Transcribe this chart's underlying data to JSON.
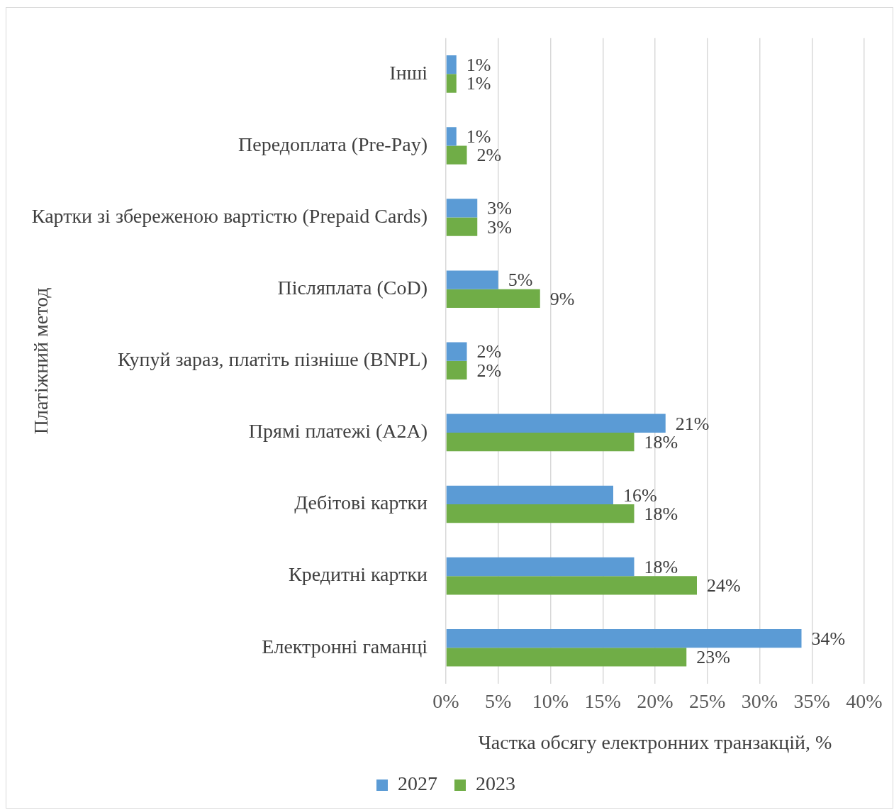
{
  "chart_data": {
    "type": "bar",
    "orientation": "horizontal",
    "xlabel": "Частка обсягу електронних транзакцій, %",
    "ylabel": "Платіжний метод",
    "categories": [
      "Інші",
      "Передоплата (Pre-Pay)",
      "Картки зі збереженою вартістю (Prepaid Cards)",
      "Післяплата (CoD)",
      "Купуй зараз, платіть пізніше (BNPL)",
      "Прямі платежі (A2A)",
      "Дебітові картки",
      "Кредитні картки",
      "Електронні гаманці"
    ],
    "series": [
      {
        "name": "2027",
        "color": "#5b9bd5",
        "values": [
          1,
          1,
          3,
          5,
          2,
          21,
          16,
          18,
          34
        ],
        "value_labels": [
          "1%",
          "1%",
          "3%",
          "5%",
          "2%",
          "21%",
          "16%",
          "18%",
          "34%"
        ]
      },
      {
        "name": "2023",
        "color": "#70ad47",
        "values": [
          1,
          2,
          3,
          9,
          2,
          18,
          18,
          24,
          23
        ],
        "value_labels": [
          "1%",
          "2%",
          "3%",
          "9%",
          "2%",
          "18%",
          "18%",
          "24%",
          "23%"
        ]
      }
    ],
    "xlim": [
      0,
      40
    ],
    "xticks": [
      {
        "value": 0,
        "label": "0%"
      },
      {
        "value": 5,
        "label": "5%"
      },
      {
        "value": 10,
        "label": "10%"
      },
      {
        "value": 15,
        "label": "15%"
      },
      {
        "value": 20,
        "label": "20%"
      },
      {
        "value": 25,
        "label": "25%"
      },
      {
        "value": 30,
        "label": "30%"
      },
      {
        "value": 35,
        "label": "35%"
      },
      {
        "value": 40,
        "label": "40%"
      }
    ],
    "grid": "x",
    "legend": "bottom"
  }
}
